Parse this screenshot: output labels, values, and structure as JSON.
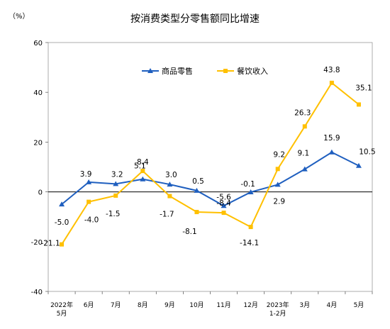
{
  "chart_data": {
    "type": "line",
    "title": "按消费类型分零售额同比增速",
    "unit": "（%）",
    "ylim": [
      -40,
      60
    ],
    "yticks": [
      -40,
      -20,
      0,
      20,
      40,
      60
    ],
    "categories": [
      [
        "2022年",
        "5月"
      ],
      [
        "6月"
      ],
      [
        "7月"
      ],
      [
        "8月"
      ],
      [
        "9月"
      ],
      [
        "10月"
      ],
      [
        "11月"
      ],
      [
        "12月"
      ],
      [
        "2023年",
        "1-2月"
      ],
      [
        "3月"
      ],
      [
        "4月"
      ],
      [
        "5月"
      ]
    ],
    "legend_placement": "top-center",
    "series": [
      {
        "name": "商品零售",
        "color": "#1f5fbf",
        "marker": "triangle",
        "values": [
          -5.0,
          3.9,
          3.2,
          5.1,
          3.0,
          0.5,
          -5.6,
          -0.1,
          2.9,
          9.1,
          15.9,
          10.5
        ],
        "labels": [
          "-5.0",
          "3.9",
          "3.2",
          "5.1",
          "3.0",
          "0.5",
          "-5.6",
          "-0.1",
          "2.9",
          "9.1",
          "15.9",
          "10.5"
        ]
      },
      {
        "name": "餐饮收入",
        "color": "#ffc000",
        "marker": "square",
        "values": [
          -21.1,
          -4.0,
          -1.5,
          8.4,
          -1.7,
          -8.1,
          -8.4,
          -14.1,
          9.2,
          26.3,
          43.8,
          35.1
        ],
        "labels": [
          "-21.1",
          "-4.0",
          "-1.5",
          "8.4",
          "-1.7",
          "-8.1",
          "-8.4",
          "-14.1",
          "9.2",
          "26.3",
          "43.8",
          "35.1"
        ]
      }
    ]
  }
}
